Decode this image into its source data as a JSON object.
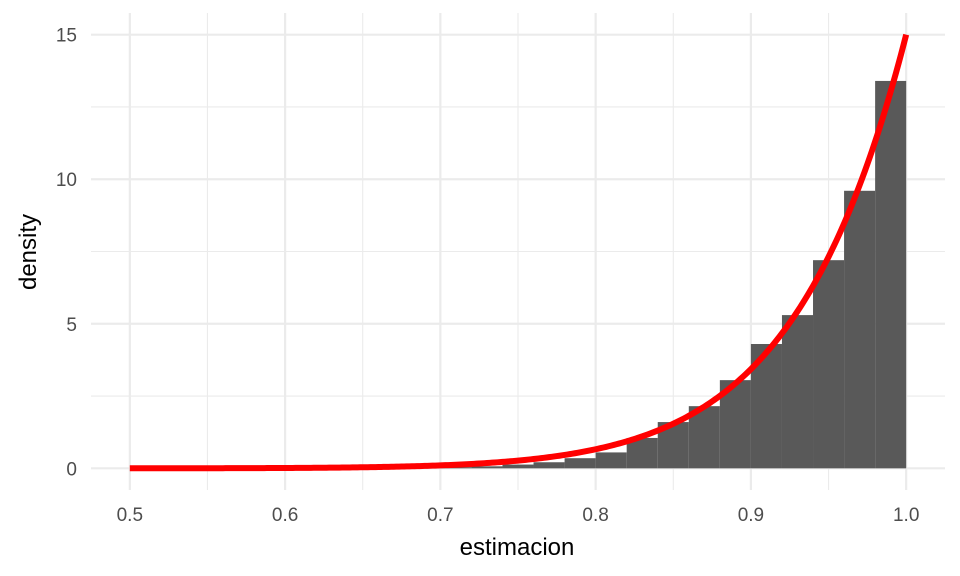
{
  "chart_data": {
    "type": "bar",
    "title": "",
    "xlabel": "estimacion",
    "ylabel": "density",
    "xlim": [
      0.475,
      1.025
    ],
    "ylim": [
      -0.75,
      15.75
    ],
    "x_ticks": [
      "0.5",
      "0.6",
      "0.7",
      "0.8",
      "0.9",
      "1.0"
    ],
    "x_tick_values": [
      0.5,
      0.6,
      0.7,
      0.8,
      0.9,
      1.0
    ],
    "y_ticks": [
      "0",
      "5",
      "10",
      "15"
    ],
    "y_tick_values": [
      0,
      5,
      10,
      15
    ],
    "grid": true,
    "histogram": {
      "bin_edges": [
        0.5,
        0.52,
        0.54,
        0.56,
        0.58,
        0.6,
        0.62,
        0.64,
        0.66,
        0.68,
        0.7,
        0.72,
        0.74,
        0.76,
        0.78,
        0.8,
        0.82,
        0.84,
        0.86,
        0.88,
        0.9,
        0.92,
        0.94,
        0.96,
        0.98,
        1.0
      ],
      "density": [
        0,
        0,
        0,
        0,
        0,
        0,
        0,
        0,
        0.01,
        0.02,
        0.04,
        0.07,
        0.13,
        0.21,
        0.35,
        0.55,
        1.05,
        1.6,
        2.15,
        3.05,
        4.3,
        5.3,
        7.2,
        9.6,
        13.4
      ],
      "color": "#595959"
    },
    "series": [
      {
        "type": "line",
        "color": "#ff0000",
        "function": "15 * x^14",
        "x_range": [
          0.5,
          1.0
        ]
      }
    ]
  }
}
